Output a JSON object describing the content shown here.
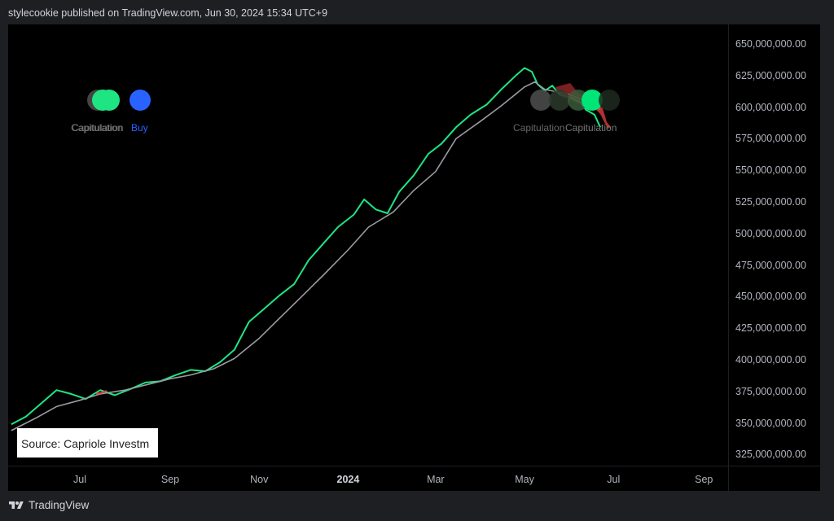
{
  "header": {
    "published": "stylecookie published on TradingView.com, Jun 30, 2024 15:34 UTC+9"
  },
  "footer": {
    "brand": "TradingView"
  },
  "source_label": "Source: Capriole Investm",
  "colors": {
    "green_line": "#1ee582",
    "grey_line": "#9a9aa3",
    "red": "#e03b3b",
    "buy_blue": "#2962ff",
    "green_dot": "#00e676"
  },
  "chart_data": {
    "type": "line",
    "title": "",
    "xlabel": "",
    "ylabel": "",
    "x_ticks": [
      "Jul",
      "Sep",
      "Nov",
      "2024",
      "Mar",
      "May",
      "Jul",
      "Sep"
    ],
    "y_ticks": [
      "650,000,000.00",
      "625,000,000.00",
      "600,000,000.00",
      "575,000,000.00",
      "550,000,000.00",
      "525,000,000.00",
      "500,000,000.00",
      "475,000,000.00",
      "450,000,000.00",
      "425,000,000.00",
      "400,000,000.00",
      "375,000,000.00",
      "350,000,000.00",
      "325,000,000.00"
    ],
    "ylim": [
      325000000,
      650000000
    ],
    "series": [
      {
        "color": "#1ee582",
        "points": [
          [
            "2023-05-15",
            349000000
          ],
          [
            "2023-05-25",
            355000000
          ],
          [
            "2023-06-05",
            366000000
          ],
          [
            "2023-06-15",
            376000000
          ],
          [
            "2023-06-25",
            373000000
          ],
          [
            "2023-07-05",
            369000000
          ],
          [
            "2023-07-15",
            376000000
          ],
          [
            "2023-07-25",
            372000000
          ],
          [
            "2023-08-05",
            377000000
          ],
          [
            "2023-08-15",
            382000000
          ],
          [
            "2023-08-25",
            383000000
          ],
          [
            "2023-09-05",
            388000000
          ],
          [
            "2023-09-15",
            392000000
          ],
          [
            "2023-09-25",
            391000000
          ],
          [
            "2023-10-05",
            398000000
          ],
          [
            "2023-10-15",
            408000000
          ],
          [
            "2023-10-25",
            430000000
          ],
          [
            "2023-11-05",
            441000000
          ],
          [
            "2023-11-15",
            451000000
          ],
          [
            "2023-11-25",
            460000000
          ],
          [
            "2023-12-05",
            479000000
          ],
          [
            "2023-12-15",
            492000000
          ],
          [
            "2023-12-25",
            505000000
          ],
          [
            "2024-01-05",
            515000000
          ],
          [
            "2024-01-12",
            527000000
          ],
          [
            "2024-01-20",
            519000000
          ],
          [
            "2024-01-28",
            516000000
          ],
          [
            "2024-02-05",
            533000000
          ],
          [
            "2024-02-15",
            546000000
          ],
          [
            "2024-02-25",
            563000000
          ],
          [
            "2024-03-05",
            571000000
          ],
          [
            "2024-03-15",
            584000000
          ],
          [
            "2024-03-25",
            594000000
          ],
          [
            "2024-04-05",
            602000000
          ],
          [
            "2024-04-15",
            614000000
          ],
          [
            "2024-04-25",
            625000000
          ],
          [
            "2024-05-01",
            631000000
          ],
          [
            "2024-05-06",
            628000000
          ],
          [
            "2024-05-10",
            618000000
          ],
          [
            "2024-05-15",
            613000000
          ],
          [
            "2024-05-20",
            617000000
          ],
          [
            "2024-05-25",
            610000000
          ],
          [
            "2024-06-01",
            608000000
          ],
          [
            "2024-06-08",
            604000000
          ],
          [
            "2024-06-12",
            598000000
          ],
          [
            "2024-06-18",
            594000000
          ],
          [
            "2024-06-22",
            584000000
          ]
        ]
      },
      {
        "color": "#9a9aa3",
        "points": [
          [
            "2023-05-15",
            344000000
          ],
          [
            "2023-06-01",
            354000000
          ],
          [
            "2023-06-15",
            363000000
          ],
          [
            "2023-07-01",
            368000000
          ],
          [
            "2023-07-15",
            373000000
          ],
          [
            "2023-08-01",
            376000000
          ],
          [
            "2023-08-15",
            380000000
          ],
          [
            "2023-09-01",
            385000000
          ],
          [
            "2023-09-15",
            388000000
          ],
          [
            "2023-10-01",
            393000000
          ],
          [
            "2023-10-15",
            401000000
          ],
          [
            "2023-11-01",
            417000000
          ],
          [
            "2023-11-15",
            433000000
          ],
          [
            "2023-12-01",
            451000000
          ],
          [
            "2023-12-15",
            467000000
          ],
          [
            "2024-01-01",
            487000000
          ],
          [
            "2024-01-15",
            505000000
          ],
          [
            "2024-02-01",
            517000000
          ],
          [
            "2024-02-15",
            534000000
          ],
          [
            "2024-03-01",
            549000000
          ],
          [
            "2024-03-15",
            575000000
          ],
          [
            "2024-04-01",
            589000000
          ],
          [
            "2024-04-15",
            601000000
          ],
          [
            "2024-05-01",
            616000000
          ],
          [
            "2024-05-08",
            620000000
          ],
          [
            "2024-05-15",
            614000000
          ],
          [
            "2024-06-01",
            610000000
          ],
          [
            "2024-06-15",
            603000000
          ],
          [
            "2024-06-22",
            598000000
          ]
        ]
      }
    ],
    "signals": [
      {
        "label": "Capitulation",
        "color": "#4a4a4a"
      },
      {
        "label": "Capitulation",
        "color": "#1ee582"
      },
      {
        "label": "Buy",
        "color": "#2962ff"
      },
      {
        "label": "Capitulation",
        "color": "#5a5a5a"
      },
      {
        "label": "Capitulation",
        "color": "#1ee582"
      }
    ]
  }
}
